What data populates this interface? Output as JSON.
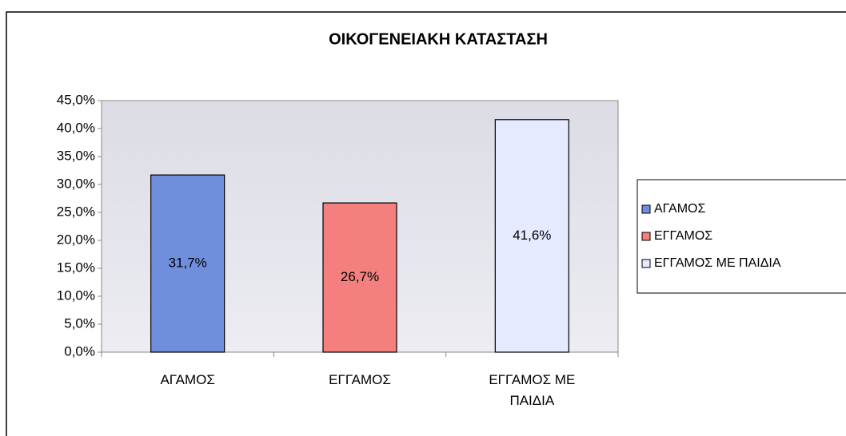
{
  "chart_data": {
    "type": "bar",
    "title": "ΟΙΚΟΓΕΝΕΙΑΚΗ ΚΑΤΑΣΤΑΣΗ",
    "categories": [
      "ΑΓΑΜΟΣ",
      "ΕΓΓΑΜΟΣ",
      "ΕΓΓΑΜΟΣ ΜΕ ΠΑΙΔΙΑ"
    ],
    "values": [
      31.7,
      26.7,
      41.6
    ],
    "value_labels": [
      "31,7%",
      "26,7%",
      "41,6%"
    ],
    "colors": [
      "#6f8fdc",
      "#f47f7f",
      "#e6eaff"
    ],
    "ylim": [
      0,
      45
    ],
    "yticks": [
      {
        "value": 0,
        "label": "0,0%"
      },
      {
        "value": 5,
        "label": "5,0%"
      },
      {
        "value": 10,
        "label": "10,0%"
      },
      {
        "value": 15,
        "label": "15,0%"
      },
      {
        "value": 20,
        "label": "20,0%"
      },
      {
        "value": 25,
        "label": "25,0%"
      },
      {
        "value": 30,
        "label": "30,0%"
      },
      {
        "value": 35,
        "label": "35,0%"
      },
      {
        "value": 40,
        "label": "40,0%"
      },
      {
        "value": 45,
        "label": "45,0%"
      }
    ],
    "grid": false,
    "legend": "right"
  }
}
